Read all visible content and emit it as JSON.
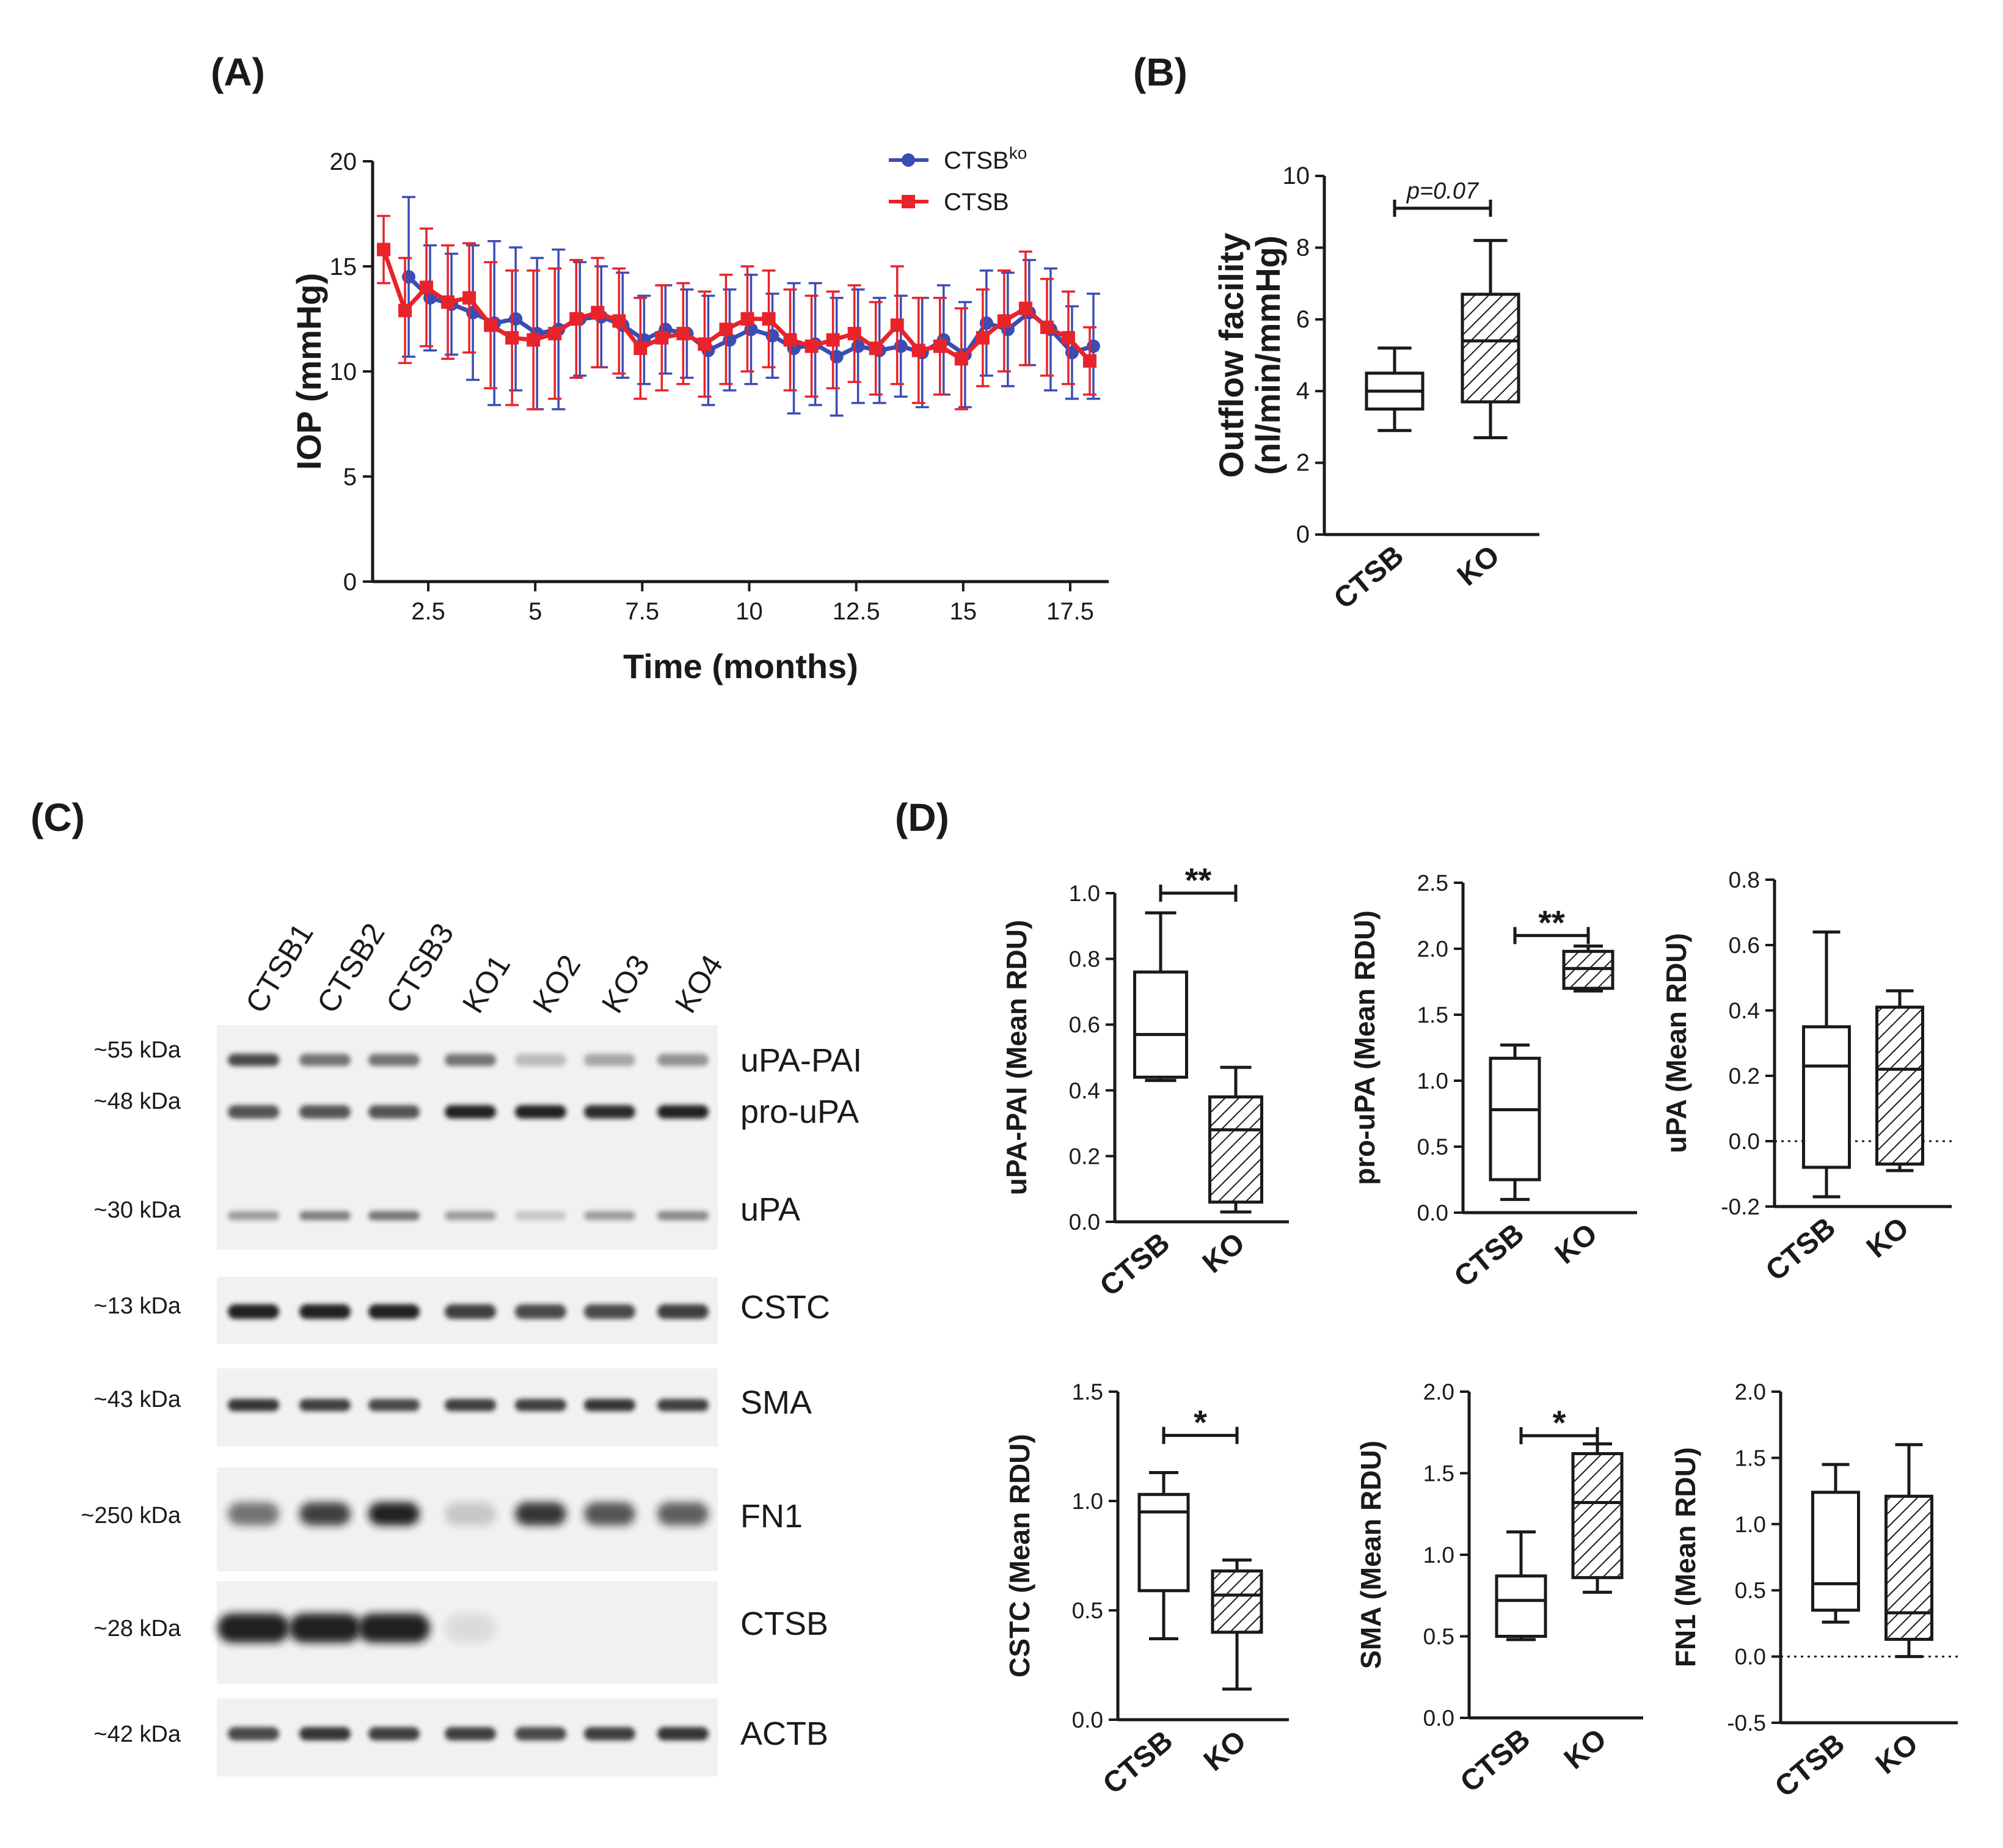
{
  "colors": {
    "ctsb_ko": "#3b4db3",
    "ctsb": "#e8232a",
    "axis": "#1a1a1a",
    "band_dark": "#141414",
    "blot_bg": "#f1f1f1"
  },
  "panel_labels": [
    "(A)",
    "(B)",
    "(C)",
    "(D)"
  ],
  "chart_data": [
    {
      "id": "A",
      "type": "line",
      "title": "",
      "xlabel": "Time (months)",
      "ylabel": "IOP (mmHg)",
      "xlim": [
        1.2,
        18.4
      ],
      "ylim": [
        0,
        20
      ],
      "xticks": [
        2.5,
        5,
        7.5,
        10,
        12.5,
        15,
        17.5
      ],
      "xtick_labels": [
        "2.5",
        "5",
        "7.5",
        "10",
        "12.5",
        "15",
        "17.5"
      ],
      "yticks": [
        0,
        5,
        10,
        15,
        20
      ],
      "ytick_labels": [
        "0",
        "5",
        "10",
        "15",
        "20"
      ],
      "legend": [
        {
          "label": "CTSB",
          "sup": "ko",
          "marker": "circle",
          "color": "#3b4db3"
        },
        {
          "label": "CTSB",
          "sup": "",
          "marker": "square",
          "color": "#e8232a"
        }
      ],
      "legend_position": "top-right",
      "series": [
        {
          "name": "CTSBko",
          "color": "#3b4db3",
          "marker": "circle",
          "x": [
            2,
            2.5,
            3,
            3.5,
            4,
            4.5,
            5,
            5.5,
            6,
            6.5,
            7,
            7.5,
            8,
            8.5,
            9,
            9.5,
            10,
            10.5,
            11,
            11.5,
            12,
            12.5,
            13,
            13.5,
            14,
            14.5,
            15,
            15.5,
            16,
            16.5,
            17,
            17.5,
            18
          ],
          "values": [
            14.5,
            13.5,
            13.2,
            12.8,
            12.3,
            12.5,
            11.8,
            12.0,
            12.5,
            12.6,
            12.2,
            11.5,
            12.0,
            11.8,
            11.0,
            11.5,
            12.0,
            11.7,
            11.1,
            11.3,
            10.7,
            11.2,
            11.0,
            11.2,
            10.9,
            11.5,
            10.8,
            12.3,
            12.0,
            12.8,
            12.0,
            10.9,
            11.2
          ],
          "errors": [
            3.8,
            2.5,
            2.4,
            3.2,
            3.9,
            3.4,
            3.6,
            3.8,
            2.7,
            2.4,
            2.5,
            2.1,
            2.1,
            2.1,
            2.6,
            2.4,
            2.6,
            2.0,
            3.1,
            2.9,
            2.8,
            2.7,
            2.5,
            2.4,
            2.6,
            2.6,
            2.5,
            2.5,
            2.7,
            2.5,
            2.9,
            2.2,
            2.5
          ]
        },
        {
          "name": "CTSB",
          "color": "#e8232a",
          "marker": "square",
          "x": [
            1.5,
            2,
            2.5,
            3,
            3.5,
            4,
            4.5,
            5,
            5.5,
            6,
            6.5,
            7,
            7.5,
            8,
            8.5,
            9,
            9.5,
            10,
            10.5,
            11,
            11.5,
            12,
            12.5,
            13,
            13.5,
            14,
            14.5,
            15,
            15.5,
            16,
            16.5,
            17,
            17.5,
            18
          ],
          "values": [
            15.8,
            12.9,
            14.0,
            13.3,
            13.5,
            12.2,
            11.6,
            11.5,
            11.8,
            12.5,
            12.8,
            12.4,
            11.1,
            11.6,
            11.8,
            11.3,
            12.0,
            12.5,
            12.5,
            11.5,
            11.2,
            11.5,
            11.8,
            11.1,
            12.2,
            11.0,
            11.2,
            10.6,
            11.6,
            12.4,
            13.0,
            12.1,
            11.6,
            10.5
          ],
          "errors": [
            1.6,
            2.5,
            2.8,
            2.7,
            2.6,
            3.0,
            3.2,
            3.3,
            3.1,
            2.8,
            2.6,
            2.5,
            2.4,
            2.5,
            2.4,
            2.5,
            2.6,
            2.5,
            2.3,
            2.4,
            2.4,
            2.3,
            2.3,
            2.2,
            2.8,
            2.5,
            2.3,
            2.4,
            2.3,
            2.4,
            2.7,
            2.3,
            2.2,
            1.6
          ]
        }
      ]
    },
    {
      "id": "B",
      "type": "box",
      "title": "",
      "ylabel_lines": [
        "Outflow facility",
        "(nl/min/mmHg)"
      ],
      "ylim": [
        0,
        10
      ],
      "yticks": [
        0,
        2,
        4,
        6,
        8,
        10
      ],
      "ytick_labels": [
        "0",
        "2",
        "4",
        "6",
        "8",
        "10"
      ],
      "categories": [
        "CTSB",
        "KO"
      ],
      "boxes": [
        {
          "min": 2.9,
          "q1": 3.5,
          "median": 4.0,
          "q3": 4.5,
          "max": 5.2,
          "hatched": false
        },
        {
          "min": 2.7,
          "q1": 3.7,
          "median": 5.4,
          "q3": 6.7,
          "max": 8.2,
          "hatched": true
        }
      ],
      "annotation": "p=0.07",
      "annotation_style": "italic"
    },
    {
      "id": "D1",
      "type": "box",
      "ylabel": "uPA-PAI (Mean RDU)",
      "ylim": [
        0,
        1.0
      ],
      "yticks": [
        0,
        0.2,
        0.4,
        0.6,
        0.8,
        1.0
      ],
      "ytick_labels": [
        "0.0",
        "0.2",
        "0.4",
        "0.6",
        "0.8",
        "1.0"
      ],
      "categories": [
        "CTSB",
        "KO"
      ],
      "boxes": [
        {
          "min": 0.43,
          "q1": 0.44,
          "median": 0.57,
          "q3": 0.76,
          "max": 0.94,
          "hatched": false
        },
        {
          "min": 0.03,
          "q1": 0.06,
          "median": 0.28,
          "q3": 0.38,
          "max": 0.47,
          "hatched": true
        }
      ],
      "annotation": "**"
    },
    {
      "id": "D2",
      "type": "box",
      "ylabel": "pro-uPA (Mean RDU)",
      "ylim": [
        0,
        2.5
      ],
      "yticks": [
        0,
        0.5,
        1.0,
        1.5,
        2.0,
        2.5
      ],
      "ytick_labels": [
        "0.0",
        "0.5",
        "1.0",
        "1.5",
        "2.0",
        "2.5"
      ],
      "categories": [
        "CTSB",
        "KO"
      ],
      "boxes": [
        {
          "min": 0.1,
          "q1": 0.25,
          "median": 0.78,
          "q3": 1.17,
          "max": 1.27,
          "hatched": false
        },
        {
          "min": 1.68,
          "q1": 1.7,
          "median": 1.85,
          "q3": 1.98,
          "max": 2.02,
          "hatched": true
        }
      ],
      "annotation": "**"
    },
    {
      "id": "D3",
      "type": "box",
      "ylabel": "uPA (Mean RDU)",
      "ylim": [
        -0.2,
        0.8
      ],
      "yticks": [
        -0.2,
        0,
        0.2,
        0.4,
        0.6,
        0.8
      ],
      "ytick_labels": [
        "-0.2",
        "0.0",
        "0.2",
        "0.4",
        "0.6",
        "0.8"
      ],
      "categories": [
        "CTSB",
        "KO"
      ],
      "zero_line": "dotted",
      "boxes": [
        {
          "min": -0.17,
          "q1": -0.08,
          "median": 0.23,
          "q3": 0.35,
          "max": 0.64,
          "hatched": false
        },
        {
          "min": -0.09,
          "q1": -0.07,
          "median": 0.22,
          "q3": 0.41,
          "max": 0.46,
          "hatched": true
        }
      ],
      "annotation": ""
    },
    {
      "id": "D4",
      "type": "box",
      "ylabel": "CSTC (Mean RDU)",
      "ylim": [
        0,
        1.5
      ],
      "yticks": [
        0,
        0.5,
        1.0,
        1.5
      ],
      "ytick_labels": [
        "0.0",
        "0.5",
        "1.0",
        "1.5"
      ],
      "categories": [
        "CTSB",
        "KO"
      ],
      "boxes": [
        {
          "min": 0.37,
          "q1": 0.59,
          "median": 0.95,
          "q3": 1.03,
          "max": 1.13,
          "hatched": false
        },
        {
          "min": 0.14,
          "q1": 0.4,
          "median": 0.57,
          "q3": 0.68,
          "max": 0.73,
          "hatched": true
        }
      ],
      "annotation": "*"
    },
    {
      "id": "D5",
      "type": "box",
      "ylabel": "SMA (Mean RDU)",
      "ylim": [
        0,
        2.0
      ],
      "yticks": [
        0,
        0.5,
        1.0,
        1.5,
        2.0
      ],
      "ytick_labels": [
        "0.0",
        "0.5",
        "1.0",
        "1.5",
        "2.0"
      ],
      "categories": [
        "CTSB",
        "KO"
      ],
      "boxes": [
        {
          "min": 0.48,
          "q1": 0.5,
          "median": 0.72,
          "q3": 0.87,
          "max": 1.14,
          "hatched": false
        },
        {
          "min": 0.77,
          "q1": 0.86,
          "median": 1.32,
          "q3": 1.62,
          "max": 1.68,
          "hatched": true
        }
      ],
      "annotation": "*"
    },
    {
      "id": "D6",
      "type": "box",
      "ylabel": "FN1 (Mean RDU)",
      "ylim": [
        -0.5,
        2.0
      ],
      "yticks": [
        -0.5,
        0,
        0.5,
        1.0,
        1.5,
        2.0
      ],
      "ytick_labels": [
        "-0.5",
        "0.0",
        "0.5",
        "1.0",
        "1.5",
        "2.0"
      ],
      "categories": [
        "CTSB",
        "KO"
      ],
      "zero_line": "dotted",
      "boxes": [
        {
          "min": 0.26,
          "q1": 0.35,
          "median": 0.55,
          "q3": 1.24,
          "max": 1.45,
          "hatched": false
        },
        {
          "min": 0.0,
          "q1": 0.13,
          "median": 0.33,
          "q3": 1.21,
          "max": 1.6,
          "hatched": true
        }
      ],
      "annotation": ""
    }
  ],
  "western_blot": {
    "lanes": [
      "CTSB1",
      "CTSB2",
      "CTSB3",
      "KO1",
      "KO2",
      "KO3",
      "KO4"
    ],
    "markers": [
      "~55 kDa",
      "~48 kDa",
      "~30 kDa",
      "~13 kDa",
      "~43 kDa",
      "~250 kDa",
      "~28 kDa",
      "~42 kDa"
    ],
    "proteins": [
      "uPA-PAI",
      "pro-uPA",
      "uPA",
      "CSTC",
      "SMA",
      "FN1",
      "CTSB",
      "ACTB"
    ],
    "band_intensity": {
      "uPA-PAI": [
        0.8,
        0.6,
        0.6,
        0.6,
        0.25,
        0.35,
        0.45
      ],
      "pro-uPA": [
        0.75,
        0.75,
        0.75,
        1.0,
        1.0,
        0.95,
        1.0
      ],
      "uPA": [
        0.4,
        0.55,
        0.6,
        0.4,
        0.2,
        0.4,
        0.5
      ],
      "CSTC": [
        1.0,
        1.0,
        1.0,
        0.85,
        0.8,
        0.8,
        0.85
      ],
      "SMA": [
        0.9,
        0.85,
        0.8,
        0.85,
        0.85,
        0.9,
        0.85
      ],
      "FN1": [
        0.6,
        0.85,
        1.0,
        0.2,
        0.9,
        0.75,
        0.7
      ],
      "CTSB": [
        1.0,
        1.0,
        1.0,
        0.1,
        0.0,
        0.0,
        0.0
      ],
      "ACTB": [
        0.8,
        0.9,
        0.85,
        0.85,
        0.8,
        0.85,
        0.9
      ]
    }
  }
}
